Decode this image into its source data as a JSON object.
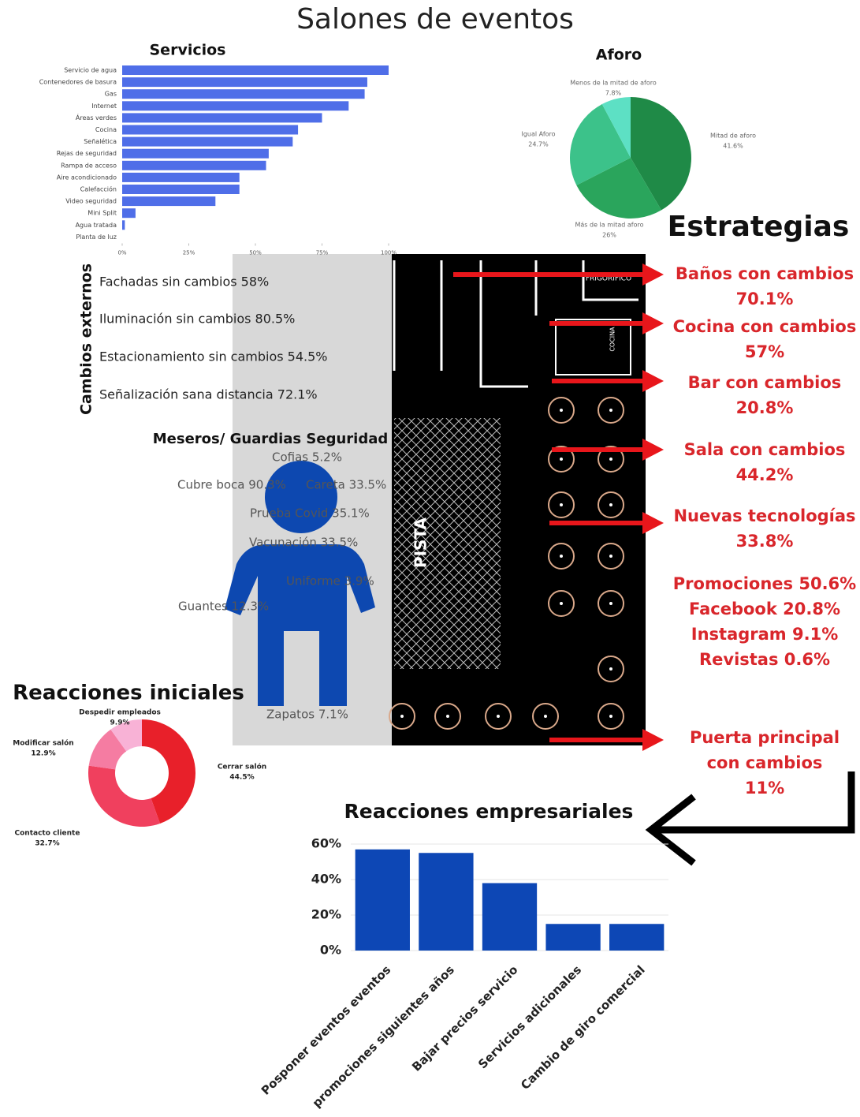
{
  "title": "Salones de eventos",
  "chart_data": [
    {
      "type": "hbar",
      "title": "Servicios",
      "categories": [
        "Servicio de agua",
        "Contenedores de basura",
        "Gas",
        "Internet",
        "Áreas verdes",
        "Cocina",
        "Señalética",
        "Rejas de seguridad",
        "Rampa de acceso",
        "Aire acondicionado",
        "Calefacción",
        "Video seguridad",
        "Mini Split",
        "Agua tratada",
        "Planta de luz"
      ],
      "values": [
        100,
        92,
        91,
        85,
        75,
        66,
        64,
        55,
        54,
        44,
        44,
        35,
        5,
        1,
        0
      ],
      "color": "#4f6ee8",
      "xlim": [
        0,
        100
      ],
      "xticks": [
        {
          "value": 0,
          "label": "0%"
        },
        {
          "value": 25,
          "label": "25%"
        },
        {
          "value": 50,
          "label": "50%"
        },
        {
          "value": 75,
          "label": "75%"
        },
        {
          "value": 100,
          "label": "100%"
        }
      ]
    },
    {
      "type": "pie",
      "title": "Aforo",
      "categories": [
        "Mitad de aforo",
        "Más de la mitad aforo",
        "Igual Aforo",
        "Menos de la mitad de aforo"
      ],
      "values": [
        41.6,
        26,
        24.7,
        7.8
      ],
      "value_labels": [
        "41.6%",
        "26%",
        "24.7%",
        "7.8%"
      ],
      "colors": [
        "#1f8a47",
        "#2aa55c",
        "#3cc28a",
        "#5de0c4"
      ]
    },
    {
      "type": "donut",
      "title": "Reacciones iniciales",
      "categories": [
        "Cerrar salón",
        "Contacto cliente",
        "Modificar salón",
        "Despedir empleados"
      ],
      "values": [
        44.5,
        32.7,
        12.9,
        9.9
      ],
      "value_labels": [
        "44.5%",
        "32.7%",
        "12.9%",
        "9.9%"
      ],
      "colors": [
        "#e8202a",
        "#f0405e",
        "#f57ca2",
        "#f8b2d6"
      ]
    },
    {
      "type": "bar",
      "title": "Reacciones empresariales",
      "categories": [
        "Posponer eventos eventos",
        "promociones siguientes años",
        "Bajar precios servicio",
        "Servicios adicionales",
        "Cambio de giro comercial"
      ],
      "values": [
        57,
        55,
        38,
        15,
        15
      ],
      "color": "#0d47b5",
      "ylim": [
        0,
        60
      ],
      "yticks": [
        {
          "value": 0,
          "label": "0%"
        },
        {
          "value": 20,
          "label": "20%"
        },
        {
          "value": 40,
          "label": "40%"
        },
        {
          "value": 60,
          "label": "60%"
        }
      ],
      "grid": true
    }
  ],
  "cambios_externos": {
    "title": "Cambios externos",
    "items": [
      "Fachadas sin cambios 58%",
      "Iluminación sin cambios 80.5%",
      "Estacionamiento sin cambios 54.5%",
      "Señalización sana distancia 72.1%"
    ]
  },
  "meseros": {
    "title": "Meseros/ Guardias Seguridad",
    "items": [
      "Cofias 5.2%",
      "Cubre boca 90.3%",
      "Careta 33.5%",
      "Prueba Covid 35.1%",
      "Vacunación 33.5%",
      "Uniforme 3.9%",
      "Guantes 12.3%",
      "Zapatos 7.1%"
    ]
  },
  "floorplan": {
    "labels": [
      "PISTA",
      "FRIGORIFICO",
      "COCINA"
    ]
  },
  "estrategias": {
    "title": "Estrategias",
    "items": [
      [
        "Baños con cambios",
        "70.1%"
      ],
      [
        "Cocina con cambios",
        "57%"
      ],
      [
        "Bar con cambios",
        "20.8%"
      ],
      [
        "Sala con cambios",
        "44.2%"
      ],
      [
        "Nuevas tecnologías",
        "33.8%"
      ],
      [
        "Promociones 50.6%",
        "Facebook 20.8%",
        "Instagram 9.1%",
        "Revistas 0.6%"
      ],
      [
        "Puerta principal",
        "con cambios",
        "11%"
      ]
    ]
  }
}
